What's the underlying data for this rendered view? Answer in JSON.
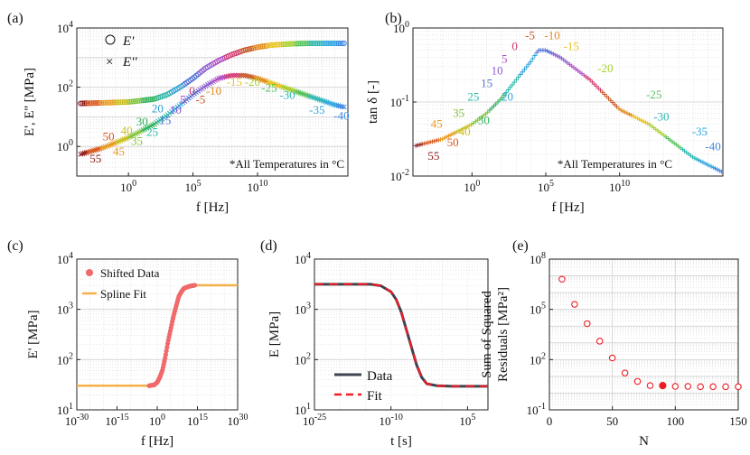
{
  "chart_data": [
    {
      "panel": "(a)",
      "type": "scatter",
      "xlabel": "f [Hz]",
      "ylabel": "E', E'' [MPa]",
      "xscale": "log",
      "yscale": "log",
      "xlim_log10": [
        -4,
        17
      ],
      "ylim_log10": [
        -1,
        4
      ],
      "xticks": [
        "10^0",
        "10^5",
        "10^10"
      ],
      "yticks": [
        "10^0",
        "10^2",
        "10^4"
      ],
      "legend": [
        {
          "marker": "○",
          "label": "E'"
        },
        {
          "marker": "×",
          "label": "E''"
        }
      ],
      "legend_position": "top-left",
      "annotation": "*All Temperatures in °C",
      "series": [
        {
          "name": "E'",
          "log10_x": [
            -4,
            -2,
            0,
            2,
            3,
            4,
            5,
            6,
            7,
            8,
            9,
            10,
            11,
            12,
            13,
            14,
            17
          ],
          "log10_y": [
            1.45,
            1.47,
            1.5,
            1.6,
            1.75,
            2.0,
            2.3,
            2.65,
            2.9,
            3.1,
            3.25,
            3.35,
            3.42,
            3.45,
            3.47,
            3.48,
            3.48
          ]
        },
        {
          "name": "E''",
          "log10_x": [
            -4,
            -2,
            0,
            2,
            3,
            4,
            5,
            6,
            7,
            8,
            9,
            10,
            11,
            12,
            13,
            14,
            15,
            16,
            17
          ],
          "log10_y": [
            -0.3,
            -0.05,
            0.3,
            0.75,
            1.05,
            1.4,
            1.75,
            2.05,
            2.3,
            2.4,
            2.4,
            2.3,
            2.15,
            2.0,
            1.85,
            1.7,
            1.55,
            1.4,
            1.3
          ]
        }
      ],
      "temperature_labels": [
        {
          "text": "55",
          "log10_x": -3.0,
          "log10_y": -0.55
        },
        {
          "text": "50",
          "log10_x": -2.0,
          "log10_y": 0.2
        },
        {
          "text": "45",
          "log10_x": -1.2,
          "log10_y": -0.3
        },
        {
          "text": "40",
          "log10_x": -0.6,
          "log10_y": 0.4
        },
        {
          "text": "35",
          "log10_x": 0.2,
          "log10_y": 0.05
        },
        {
          "text": "30",
          "log10_x": 0.6,
          "log10_y": 0.7
        },
        {
          "text": "25",
          "log10_x": 1.4,
          "log10_y": 0.35
        },
        {
          "text": "20",
          "log10_x": 1.8,
          "log10_y": 1.15
        },
        {
          "text": "15",
          "log10_x": 2.4,
          "log10_y": 0.75
        },
        {
          "text": "10",
          "log10_x": 3.2,
          "log10_y": 1.1
        },
        {
          "text": "5",
          "log10_x": 4.0,
          "log10_y": 1.45
        },
        {
          "text": "0",
          "log10_x": 4.7,
          "log10_y": 1.75
        },
        {
          "text": "-5",
          "log10_x": 5.2,
          "log10_y": 1.45
        },
        {
          "text": "-10",
          "log10_x": 6.0,
          "log10_y": 1.75
        },
        {
          "text": "-15",
          "log10_x": 7.6,
          "log10_y": 2.05
        },
        {
          "text": "-20",
          "log10_x": 9.0,
          "log10_y": 2.05
        },
        {
          "text": "-25",
          "log10_x": 10.3,
          "log10_y": 1.85
        },
        {
          "text": "-30",
          "log10_x": 11.7,
          "log10_y": 1.6
        },
        {
          "text": "-35",
          "log10_x": 14.0,
          "log10_y": 1.1
        },
        {
          "text": "-40",
          "log10_x": 15.9,
          "log10_y": 0.9
        }
      ]
    },
    {
      "panel": "(b)",
      "type": "scatter",
      "xlabel": "f [Hz]",
      "ylabel": "tan δ [-]",
      "xscale": "log",
      "yscale": "log",
      "xlim_log10": [
        -4,
        17
      ],
      "ylim_log10": [
        -2,
        0
      ],
      "xticks": [
        "10^0",
        "10^5",
        "10^10"
      ],
      "yticks": [
        "10^-2",
        "10^-1",
        "10^0"
      ],
      "annotation": "*All Temperatures in °C",
      "series": [
        {
          "name": "tan δ",
          "log10_x": [
            -4,
            -2,
            0,
            1,
            2,
            3,
            4,
            4.5,
            5,
            6,
            7,
            8,
            9,
            10,
            11,
            12,
            13,
            14,
            15,
            16,
            17
          ],
          "log10_y": [
            -1.6,
            -1.5,
            -1.3,
            -1.15,
            -0.95,
            -0.7,
            -0.45,
            -0.3,
            -0.3,
            -0.4,
            -0.55,
            -0.7,
            -0.9,
            -1.1,
            -1.2,
            -1.3,
            -1.45,
            -1.6,
            -1.75,
            -1.85,
            -1.95
          ]
        }
      ],
      "temperature_labels": [
        {
          "text": "55",
          "log10_x": -3.0,
          "log10_y": -1.78
        },
        {
          "text": "50",
          "log10_x": -1.7,
          "log10_y": -1.6
        },
        {
          "text": "45",
          "log10_x": -2.8,
          "log10_y": -1.35
        },
        {
          "text": "40",
          "log10_x": -0.9,
          "log10_y": -1.45
        },
        {
          "text": "35",
          "log10_x": -1.3,
          "log10_y": -1.2
        },
        {
          "text": "30",
          "log10_x": 0.4,
          "log10_y": -1.3
        },
        {
          "text": "25",
          "log10_x": -0.3,
          "log10_y": -0.98
        },
        {
          "text": "20",
          "log10_x": 2.0,
          "log10_y": -0.98
        },
        {
          "text": "15",
          "log10_x": 0.6,
          "log10_y": -0.8
        },
        {
          "text": "10",
          "log10_x": 1.3,
          "log10_y": -0.63
        },
        {
          "text": "5",
          "log10_x": 2.0,
          "log10_y": -0.47
        },
        {
          "text": "0",
          "log10_x": 2.7,
          "log10_y": -0.3
        },
        {
          "text": "-5",
          "log10_x": 3.6,
          "log10_y": -0.15
        },
        {
          "text": "-10",
          "log10_x": 4.9,
          "log10_y": -0.15
        },
        {
          "text": "-15",
          "log10_x": 6.2,
          "log10_y": -0.3
        },
        {
          "text": "-20",
          "log10_x": 8.5,
          "log10_y": -0.6
        },
        {
          "text": "-25",
          "log10_x": 11.8,
          "log10_y": -0.95
        },
        {
          "text": "-30",
          "log10_x": 12.3,
          "log10_y": -1.25
        },
        {
          "text": "-35",
          "log10_x": 14.9,
          "log10_y": -1.45
        },
        {
          "text": "-40",
          "log10_x": 15.8,
          "log10_y": -1.65
        }
      ]
    },
    {
      "panel": "(c)",
      "type": "scatter",
      "xlabel": "f [Hz]",
      "ylabel": "E' [MPa]",
      "xscale": "log",
      "yscale": "log",
      "xlim_log10": [
        -30,
        30
      ],
      "ylim_log10": [
        1,
        4
      ],
      "xticks": [
        "10^-30",
        "10^-15",
        "10^0",
        "10^15",
        "10^30"
      ],
      "yticks": [
        "10^1",
        "10^2",
        "10^3",
        "10^4"
      ],
      "legend": [
        {
          "marker": "●",
          "label": "Shifted Data"
        },
        {
          "marker": "—",
          "label": "Spline Fit"
        }
      ],
      "legend_position": "top-left",
      "series": [
        {
          "name": "Shifted Data",
          "log10_x": [
            -3,
            -2,
            -1,
            0,
            1,
            2,
            3,
            4,
            5,
            6,
            7,
            8,
            9,
            10,
            12,
            14
          ],
          "log10_y": [
            1.48,
            1.49,
            1.5,
            1.55,
            1.65,
            1.8,
            2.05,
            2.35,
            2.6,
            2.85,
            3.05,
            3.25,
            3.35,
            3.42,
            3.46,
            3.48
          ]
        },
        {
          "name": "Spline Fit",
          "log10_x": [
            -30,
            -4,
            -2,
            0,
            2,
            4,
            6,
            8,
            10,
            12,
            14,
            16,
            30
          ],
          "log10_y": [
            1.48,
            1.48,
            1.49,
            1.55,
            1.8,
            2.35,
            2.85,
            3.25,
            3.42,
            3.46,
            3.48,
            3.48,
            3.48
          ]
        }
      ]
    },
    {
      "panel": "(d)",
      "type": "line",
      "xlabel": "t [s]",
      "ylabel": "E [MPa]",
      "xscale": "log",
      "yscale": "log",
      "xlim_log10": [
        -25,
        9
      ],
      "ylim_log10": [
        1,
        4
      ],
      "xticks": [
        "10^-25",
        "10^-10",
        "10^5"
      ],
      "yticks": [
        "10^1",
        "10^2",
        "10^3",
        "10^4"
      ],
      "legend": [
        {
          "marker": "—",
          "label": "Data"
        },
        {
          "marker": "– –",
          "label": "Fit"
        }
      ],
      "legend_position": "bottom-left",
      "series": [
        {
          "name": "Data",
          "log10_x": [
            -25,
            -14,
            -12,
            -10,
            -9,
            -8,
            -7,
            -6,
            -5,
            -4,
            -3,
            -1,
            2,
            5,
            9
          ],
          "log10_y": [
            3.5,
            3.5,
            3.47,
            3.35,
            3.2,
            2.95,
            2.6,
            2.25,
            1.9,
            1.65,
            1.52,
            1.48,
            1.47,
            1.47,
            1.47
          ]
        },
        {
          "name": "Fit",
          "log10_x": [
            -25,
            -14,
            -12,
            -10,
            -9,
            -8,
            -7,
            -6,
            -5,
            -4,
            -3,
            -1,
            2,
            5,
            9
          ],
          "log10_y": [
            3.5,
            3.5,
            3.47,
            3.35,
            3.2,
            2.95,
            2.6,
            2.25,
            1.9,
            1.65,
            1.52,
            1.48,
            1.47,
            1.47,
            1.47
          ]
        }
      ]
    },
    {
      "panel": "(e)",
      "type": "scatter",
      "xlabel": "N",
      "ylabel": "Sum of Squared Residuals [MPa²]",
      "ylabel_lines": [
        "Sum of Squared",
        "Residuals [MPa²]"
      ],
      "xscale": "linear",
      "yscale": "log",
      "xlim": [
        0,
        150
      ],
      "ylim_log10": [
        -1,
        8
      ],
      "xticks": [
        "0",
        "50",
        "100",
        "150"
      ],
      "yticks": [
        "10^-1",
        "10^2",
        "10^5",
        "10^8"
      ],
      "series": [
        {
          "name": "SSR",
          "x": [
            10,
            20,
            30,
            40,
            50,
            60,
            70,
            80,
            90,
            100,
            110,
            120,
            130,
            140,
            150
          ],
          "log10_y": [
            6.8,
            5.3,
            4.15,
            3.1,
            2.1,
            1.2,
            0.7,
            0.45,
            0.45,
            0.4,
            0.4,
            0.38,
            0.38,
            0.38,
            0.38
          ]
        }
      ],
      "highlighted_point": {
        "x": 90,
        "log10_y": 0.45
      }
    }
  ],
  "temperature_colors": [
    "#8b1a1a",
    "#d9561a",
    "#e89a1c",
    "#c9c01e",
    "#7ec43a",
    "#2fb25c",
    "#29b7a8",
    "#2a9fd6",
    "#4f6fd2",
    "#8a5bd0",
    "#b04cc4",
    "#d1386e",
    "#c8561f",
    "#e28a1e",
    "#e8c31e",
    "#a8cf2c",
    "#54c15a",
    "#2bb8b3",
    "#2ea6e0",
    "#3f88e4"
  ],
  "colors": {
    "shifted": "#f0696b",
    "spline": "#f6b04a",
    "data": "#3d4450",
    "fit": "#ee1c25",
    "ssr": "#ee1c25",
    "grid": "#cfcfcf"
  }
}
